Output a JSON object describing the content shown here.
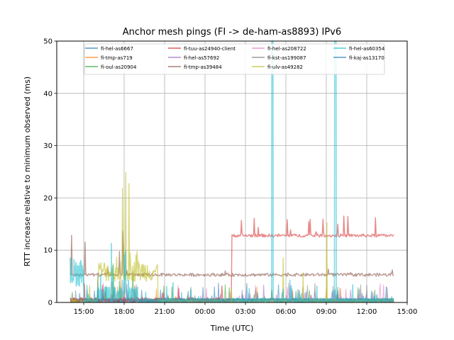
{
  "chart_data": {
    "type": "line",
    "title": "Anchor mesh pings (FI -> de-ham-as8893) IPv6",
    "xlabel": "Time (UTC)",
    "ylabel": "RTT increase relative to minimum observed (ms)",
    "ylim": [
      0,
      50
    ],
    "xlim_hours": [
      13.0,
      15.0
    ],
    "x_ticks": [
      "15:00",
      "18:00",
      "21:00",
      "00:00",
      "03:00",
      "06:00",
      "09:00",
      "12:00",
      "15:00"
    ],
    "y_ticks": [
      0,
      10,
      20,
      30,
      40,
      50
    ],
    "grid": true,
    "legend_position": "upper center",
    "series": [
      {
        "name": "fi-hel-as6667",
        "color": "#1f77b4"
      },
      {
        "name": "fi-tmp-as719",
        "color": "#ff7f0e"
      },
      {
        "name": "fi-oul-as20904",
        "color": "#2ca02c"
      },
      {
        "name": "fi-tuu-as24940-client",
        "color": "#d62728"
      },
      {
        "name": "fi-hel-as57692",
        "color": "#9467bd"
      },
      {
        "name": "fi-tmp-as39484",
        "color": "#8c564b"
      },
      {
        "name": "fi-hel-as208722",
        "color": "#e377c2"
      },
      {
        "name": "fi-kst-as199087",
        "color": "#7f7f7f"
      },
      {
        "name": "fi-ulv-as49282",
        "color": "#bcbd22"
      },
      {
        "name": "fi-hel-as60354",
        "color": "#17becf"
      },
      {
        "name": "fi-kaj-as13170",
        "color": "#1f77b4"
      }
    ],
    "features": [
      {
        "series": "fi-tuu-as24940-client",
        "from": "02:00",
        "to": "14:00",
        "baseline": 12.5
      },
      {
        "series": "fi-tmp-as39484",
        "from": "14:00",
        "to": "14:00",
        "baseline": 5.0
      },
      {
        "series": "fi-ulv-as49282",
        "from": "16:00",
        "to": "20:00",
        "peak": 28.3
      },
      {
        "series": "fi-hel-as60354",
        "at": "05:00",
        "peak": 50
      },
      {
        "series": "fi-hel-as60354",
        "at": "09:40",
        "peak": 50
      }
    ]
  }
}
